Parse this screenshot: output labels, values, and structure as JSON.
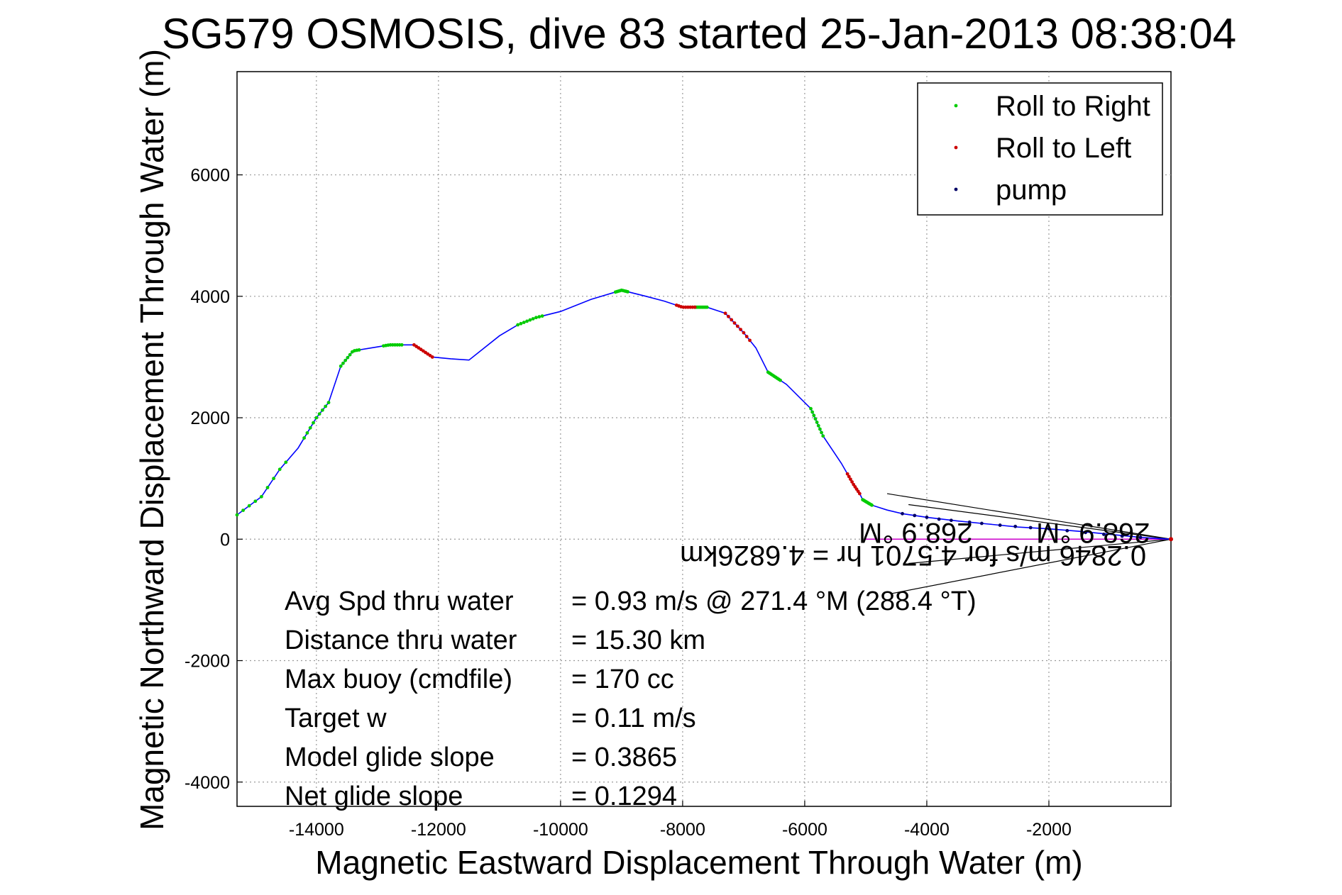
{
  "chart_data": {
    "type": "line",
    "title": "SG579 OSMOSIS, dive 83 started 25-Jan-2013 08:38:04",
    "xlabel": "Magnetic Eastward Displacement Through Water (m)",
    "ylabel": "Magnetic Northward Displacement Through Water (m)",
    "xlim": [
      -15300,
      0
    ],
    "ylim": [
      -4400,
      7700
    ],
    "xticks": [
      -14000,
      -12000,
      -10000,
      -8000,
      -6000,
      -4000,
      -2000
    ],
    "yticks": [
      -4000,
      -2000,
      0,
      2000,
      4000,
      6000
    ],
    "grid": true,
    "legend_position": "top-right",
    "legend": [
      {
        "label": "Roll to Right",
        "color": "#00cc00"
      },
      {
        "label": "Roll to Left",
        "color": "#cc0000"
      },
      {
        "label": "pump",
        "color": "#000066"
      }
    ],
    "track": {
      "name": "",
      "color": "#0000ff",
      "x": [
        -15300,
        -14900,
        -14600,
        -14300,
        -14000,
        -13800,
        -13600,
        -13400,
        -13100,
        -12800,
        -12400,
        -12100,
        -11800,
        -11500,
        -11000,
        -10700,
        -10400,
        -10000,
        -9500,
        -9000,
        -8600,
        -8300,
        -8000,
        -7600,
        -7300,
        -7000,
        -6800,
        -6600,
        -6300,
        -5900,
        -5700,
        -5400,
        -5200,
        -5100,
        -5050,
        -4900,
        -4650,
        -4400,
        -4000,
        -3500,
        -3000,
        -2500,
        -2000,
        -1500,
        -1000,
        -500,
        0
      ],
      "y": [
        400,
        700,
        1150,
        1500,
        2000,
        2250,
        2850,
        3100,
        3150,
        3200,
        3200,
        3000,
        2970,
        2950,
        3350,
        3530,
        3650,
        3750,
        3950,
        4100,
        4000,
        3920,
        3820,
        3820,
        3720,
        3400,
        3150,
        2750,
        2550,
        2150,
        1700,
        1250,
        900,
        750,
        650,
        560,
        480,
        420,
        360,
        300,
        250,
        200,
        170,
        130,
        80,
        30,
        0
      ]
    },
    "roll_right_segments": [
      [
        -15300,
        -14500
      ],
      [
        -14200,
        -13800
      ],
      [
        -13600,
        -13300
      ],
      [
        -12900,
        -12600
      ],
      [
        -10700,
        -10300
      ],
      [
        -9100,
        -8900
      ],
      [
        -7800,
        -7600
      ],
      [
        -6600,
        -6400
      ],
      [
        -5900,
        -5700
      ],
      [
        -5050,
        -4900
      ]
    ],
    "roll_left_segments": [
      [
        -12400,
        -12100
      ],
      [
        -8100,
        -7800
      ],
      [
        -7300,
        -6900
      ],
      [
        -5300,
        -5100
      ]
    ],
    "pump_points": [
      [
        -4400,
        420
      ],
      [
        -4200,
        390
      ],
      [
        -4000,
        360
      ],
      [
        -3800,
        330
      ],
      [
        -3600,
        310
      ],
      [
        -3300,
        280
      ],
      [
        -3100,
        260
      ],
      [
        -2800,
        230
      ],
      [
        -2550,
        210
      ],
      [
        -2300,
        190
      ],
      [
        -2000,
        170
      ],
      [
        -1700,
        140
      ],
      [
        -1400,
        110
      ],
      [
        -1100,
        80
      ],
      [
        -800,
        50
      ],
      [
        -500,
        30
      ]
    ],
    "current_annotation": {
      "line1": "0.2846 m/s for 4.5701 hr = 4.6826km",
      "line2": "268.9 °M",
      "line3": "268.9 °M",
      "color": "#000000",
      "cone_lines": [
        [
          [
            -4650,
            750
          ],
          [
            0,
            0
          ]
        ],
        [
          [
            -4600,
            -900
          ],
          [
            0,
            0
          ]
        ],
        [
          [
            -4300,
            570
          ],
          [
            0,
            0
          ]
        ],
        [
          [
            -4300,
            -400
          ],
          [
            0,
            0
          ]
        ]
      ]
    }
  },
  "stats": [
    {
      "label": "Avg Spd thru water",
      "value": "=  0.93 m/s @ 271.4 °M (288.4 °T)"
    },
    {
      "label": "Distance thru water",
      "value": "= 15.30 km"
    },
    {
      "label": "Max buoy (cmdfile)",
      "value": "= 170 cc"
    },
    {
      "label": "Target w",
      "value": "= 0.11 m/s"
    },
    {
      "label": "Model glide slope",
      "value": "= 0.3865"
    },
    {
      "label": "Net glide slope",
      "value": "= 0.1294"
    }
  ]
}
